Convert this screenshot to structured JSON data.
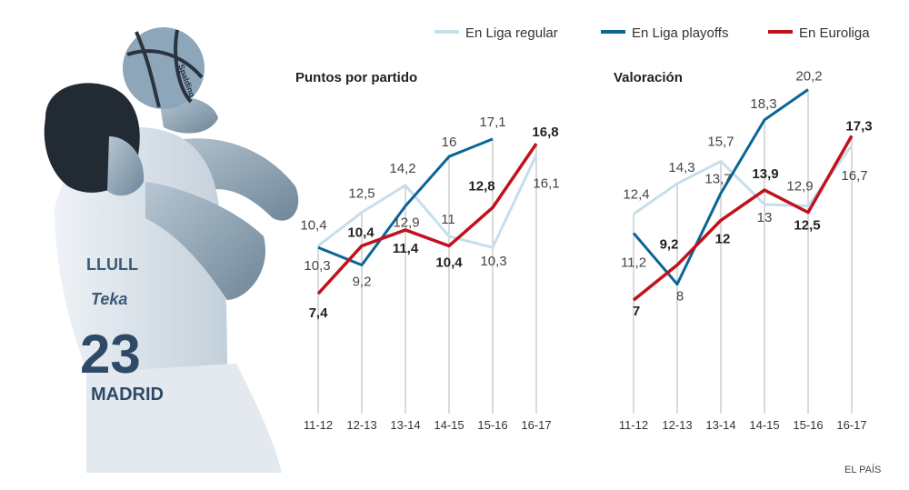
{
  "source": "EL PAÍS",
  "photo": {
    "jersey_name": "LLULL",
    "jersey_number": "23",
    "jersey_team": "MADRID",
    "sponsor": "Teka",
    "ball_brand": "Spalding"
  },
  "legend": [
    {
      "name": "En Liga regular",
      "color": "#c6dfeb"
    },
    {
      "name": "En Liga playoffs",
      "color": "#0b6596"
    },
    {
      "name": "En Euroliga",
      "color": "#c1121c"
    }
  ],
  "chart_data": [
    {
      "type": "line",
      "title": "Puntos por partido",
      "categories": [
        "11-12",
        "12-13",
        "13-14",
        "14-15",
        "15-16",
        "16-17"
      ],
      "legend_placement": "top",
      "grid": "vertical",
      "series": [
        {
          "name": "En Liga regular",
          "values": [
            10.4,
            12.5,
            14.2,
            11,
            10.3,
            16.1
          ],
          "labels": [
            "10,4",
            "12,5",
            "14,2",
            "11",
            "10,3",
            "16,1"
          ]
        },
        {
          "name": "En Liga playoffs",
          "values": [
            10.3,
            9.2,
            12.9,
            16,
            17.1,
            null
          ],
          "labels": [
            "10,3",
            "9,2",
            "12,9",
            "16",
            "17,1",
            ""
          ]
        },
        {
          "name": "En Euroliga",
          "values": [
            7.4,
            10.4,
            11.4,
            10.4,
            12.8,
            16.8
          ],
          "labels": [
            "7,4",
            "10,4",
            "11,4",
            "10,4",
            "12,8",
            "16,8"
          ]
        }
      ]
    },
    {
      "type": "line",
      "title": "Valoración",
      "categories": [
        "11-12",
        "12-13",
        "13-14",
        "14-15",
        "15-16",
        "16-17"
      ],
      "legend_placement": "top",
      "grid": "vertical",
      "series": [
        {
          "name": "En Liga regular",
          "values": [
            12.4,
            14.3,
            15.7,
            13,
            12.9,
            16.7
          ],
          "labels": [
            "12,4",
            "14,3",
            "15,7",
            "13",
            "12,9",
            "16,7"
          ]
        },
        {
          "name": "En Liga playoffs",
          "values": [
            11.2,
            8,
            13.7,
            18.3,
            20.2,
            null
          ],
          "labels": [
            "11,2",
            "8",
            "13,7",
            "18,3",
            "20,2",
            ""
          ]
        },
        {
          "name": "En Euroliga",
          "values": [
            7,
            9.2,
            12,
            13.9,
            12.5,
            17.3
          ],
          "labels": [
            "7",
            "9,2",
            "12",
            "13,9",
            "12,5",
            "17,3"
          ]
        }
      ]
    }
  ]
}
